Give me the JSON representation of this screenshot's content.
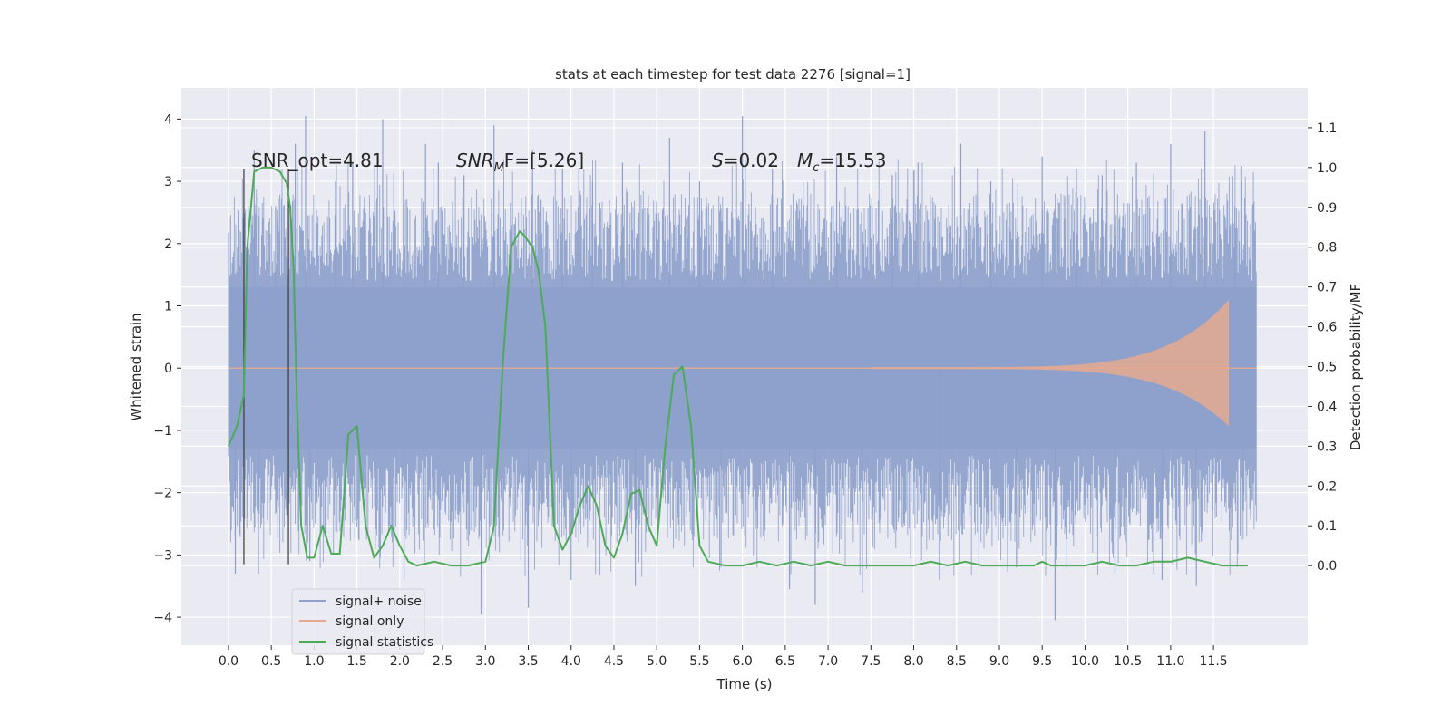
{
  "chart_data": {
    "type": "line",
    "title": "stats at each timestep for test data 2276 [signal=1]",
    "xlabel": "Time (s)",
    "ylabel": "Whitened strain",
    "ylabel_right": "Detection probability/MF",
    "xlim": [
      -0.55,
      12.6
    ],
    "ylim": [
      -4.45,
      4.5
    ],
    "ylim_right": [
      -0.2,
      1.2
    ],
    "grid": true,
    "legend_position": "lower-left",
    "x_ticks": [
      "0.0",
      "0.5",
      "1.0",
      "1.5",
      "2.0",
      "2.5",
      "3.0",
      "3.5",
      "4.0",
      "4.5",
      "5.0",
      "5.5",
      "6.0",
      "6.5",
      "7.0",
      "7.5",
      "8.0",
      "8.5",
      "9.0",
      "9.5",
      "10.0",
      "10.5",
      "11.0",
      "11.5"
    ],
    "y_ticks_left": [
      "4",
      "3",
      "2",
      "1",
      "0",
      "−1",
      "−2",
      "−3",
      "−4"
    ],
    "y_ticks_right": [
      "1.1",
      "1.0",
      "0.9",
      "0.8",
      "0.7",
      "0.6",
      "0.5",
      "0.4",
      "0.3",
      "0.2",
      "0.1",
      "0.0"
    ],
    "annotations": {
      "snr_opt": "SNR_opt=4.81",
      "snr_mf_base": "SNR",
      "snr_mf_sub": "M",
      "snr_mf_rest": "F=[5.26]",
      "s_var": "S",
      "s_val": "=0.02",
      "mc_var": "M",
      "mc_sub": "c",
      "mc_val": "=15.53"
    },
    "series": [
      {
        "name": "signal+ noise",
        "color": "#8da0cb",
        "x_range": [
          0.0,
          12.0
        ],
        "band_y": [
          -1.3,
          1.3
        ],
        "spikes": [
          {
            "x": 0.08,
            "y": -3.3
          },
          {
            "x": 0.12,
            "y": 2.5
          },
          {
            "x": 0.3,
            "y": 3.5
          },
          {
            "x": 0.35,
            "y": -3.3
          },
          {
            "x": 0.55,
            "y": 2.6
          },
          {
            "x": 0.78,
            "y": 3.6
          },
          {
            "x": 0.9,
            "y": 4.05
          },
          {
            "x": 0.95,
            "y": -3.1
          },
          {
            "x": 1.25,
            "y": 3.0
          },
          {
            "x": 1.45,
            "y": 3.3
          },
          {
            "x": 1.8,
            "y": 4.0
          },
          {
            "x": 2.05,
            "y": -3.4
          },
          {
            "x": 2.3,
            "y": 3.6
          },
          {
            "x": 2.45,
            "y": 3.3
          },
          {
            "x": 2.75,
            "y": 3.1
          },
          {
            "x": 2.95,
            "y": -3.95
          },
          {
            "x": 3.1,
            "y": 3.9
          },
          {
            "x": 3.5,
            "y": -3.85
          },
          {
            "x": 3.55,
            "y": 3.5
          },
          {
            "x": 3.9,
            "y": 3.2
          },
          {
            "x": 4.0,
            "y": -3.4
          },
          {
            "x": 4.25,
            "y": 3.0
          },
          {
            "x": 4.6,
            "y": 3.3
          },
          {
            "x": 4.75,
            "y": -3.5
          },
          {
            "x": 5.15,
            "y": 3.7
          },
          {
            "x": 5.5,
            "y": 3.0
          },
          {
            "x": 5.75,
            "y": -3.2
          },
          {
            "x": 6.0,
            "y": 4.05
          },
          {
            "x": 6.35,
            "y": 3.2
          },
          {
            "x": 6.55,
            "y": -3.55
          },
          {
            "x": 6.85,
            "y": -3.8
          },
          {
            "x": 7.1,
            "y": 3.4
          },
          {
            "x": 7.4,
            "y": -3.6
          },
          {
            "x": 7.75,
            "y": 3.1
          },
          {
            "x": 8.05,
            "y": 3.3
          },
          {
            "x": 8.3,
            "y": -3.4
          },
          {
            "x": 8.55,
            "y": 3.6
          },
          {
            "x": 8.9,
            "y": 3.0
          },
          {
            "x": 9.2,
            "y": -3.2
          },
          {
            "x": 9.5,
            "y": 3.4
          },
          {
            "x": 9.65,
            "y": -4.05
          },
          {
            "x": 9.9,
            "y": 3.2
          },
          {
            "x": 10.2,
            "y": 3.1
          },
          {
            "x": 10.35,
            "y": -3.3
          },
          {
            "x": 10.6,
            "y": 3.3
          },
          {
            "x": 10.9,
            "y": -3.4
          },
          {
            "x": 11.0,
            "y": 3.6
          },
          {
            "x": 11.3,
            "y": -3.5
          },
          {
            "x": 11.4,
            "y": 3.8
          },
          {
            "x": 11.75,
            "y": 2.6
          },
          {
            "x": 11.85,
            "y": -2.3
          }
        ]
      },
      {
        "name": "signal only",
        "color": "#e5a98f",
        "x_range": [
          7.5,
          11.68
        ],
        "peak_amplitude": 1.1
      },
      {
        "name": "signal statistics",
        "color": "#4daa57",
        "axis": "right",
        "x": [
          0.0,
          0.1,
          0.13,
          0.18,
          0.22,
          0.3,
          0.4,
          0.5,
          0.6,
          0.68,
          0.72,
          0.76,
          0.8,
          0.85,
          0.92,
          1.0,
          1.1,
          1.2,
          1.3,
          1.4,
          1.5,
          1.6,
          1.7,
          1.8,
          1.9,
          2.0,
          2.1,
          2.2,
          2.4,
          2.6,
          2.8,
          3.0,
          3.1,
          3.2,
          3.3,
          3.4,
          3.45,
          3.55,
          3.62,
          3.7,
          3.8,
          3.9,
          4.0,
          4.1,
          4.2,
          4.3,
          4.4,
          4.5,
          4.6,
          4.7,
          4.8,
          4.9,
          5.0,
          5.1,
          5.2,
          5.3,
          5.4,
          5.5,
          5.6,
          5.8,
          6.0,
          6.2,
          6.4,
          6.6,
          6.8,
          7.0,
          7.2,
          7.4,
          7.6,
          7.8,
          8.0,
          8.2,
          8.4,
          8.6,
          8.8,
          9.0,
          9.2,
          9.4,
          9.5,
          9.6,
          9.8,
          10.0,
          10.2,
          10.4,
          10.6,
          10.8,
          11.0,
          11.2,
          11.4,
          11.6,
          11.8,
          11.9
        ],
        "y": [
          0.3,
          0.35,
          0.38,
          0.43,
          0.8,
          0.99,
          1.0,
          1.0,
          0.99,
          0.96,
          0.9,
          0.75,
          0.4,
          0.1,
          0.02,
          0.02,
          0.1,
          0.03,
          0.03,
          0.33,
          0.35,
          0.1,
          0.02,
          0.05,
          0.1,
          0.05,
          0.01,
          0.0,
          0.01,
          0.0,
          0.0,
          0.01,
          0.1,
          0.5,
          0.8,
          0.84,
          0.83,
          0.8,
          0.74,
          0.6,
          0.1,
          0.04,
          0.08,
          0.15,
          0.2,
          0.15,
          0.05,
          0.02,
          0.08,
          0.18,
          0.19,
          0.1,
          0.05,
          0.3,
          0.48,
          0.5,
          0.35,
          0.05,
          0.01,
          0.0,
          0.0,
          0.01,
          0.0,
          0.01,
          0.0,
          0.01,
          0.0,
          0.0,
          0.0,
          0.0,
          0.0,
          0.01,
          0.0,
          0.01,
          0.0,
          0.0,
          0.0,
          0.0,
          0.01,
          0.0,
          0.0,
          0.0,
          0.01,
          0.0,
          0.0,
          0.01,
          0.01,
          0.02,
          0.01,
          0.0,
          0.0,
          0.0
        ]
      }
    ],
    "vlines": [
      0.18,
      0.7
    ]
  }
}
